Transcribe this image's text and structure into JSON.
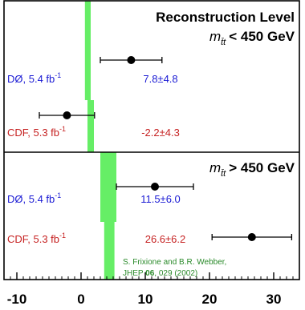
{
  "chart_data": {
    "type": "scatter",
    "subtype": "forest-plot",
    "xlim": [
      -12,
      34
    ],
    "x_ticks": [
      -10,
      0,
      10,
      20,
      30
    ],
    "x_tick_labels": [
      "-10",
      "0",
      "10",
      "20",
      "30"
    ],
    "grid": false,
    "title": "Reconstruction Level",
    "colors": {
      "frame": "#000000",
      "d0": "#1a1ad4",
      "cdf": "#c62222",
      "band": "#66ee66",
      "citation": "#2a8a2a",
      "marker": "#000000"
    },
    "panels": [
      {
        "label_var": "m",
        "label_sub": "t̄t",
        "label_rest": "< 450 GeV",
        "band": [
          {
            "x_range": [
              0.6,
              1.5
            ],
            "note": "upper band segment"
          },
          {
            "x_range": [
              1.0,
              2.0
            ],
            "note": "lower band segment"
          }
        ],
        "entries": [
          {
            "experiment": "DØ, 5.4 fb",
            "lumi_exp": "-1",
            "value": 7.8,
            "error": 4.8,
            "value_label": "7.8±4.8",
            "color_key": "d0"
          },
          {
            "experiment": "CDF, 5.3 fb",
            "lumi_exp": "-1",
            "value": -2.2,
            "error": 4.3,
            "value_label": "-2.2±4.3",
            "color_key": "cdf"
          }
        ]
      },
      {
        "label_var": "m",
        "label_sub": "t̄t",
        "label_rest": "> 450 GeV",
        "band": [
          {
            "x_range": [
              3.0,
              5.5
            ],
            "note": "upper band segment"
          },
          {
            "x_range": [
              3.6,
              5.2
            ],
            "note": "lower band segment"
          }
        ],
        "entries": [
          {
            "experiment": "DØ, 5.4 fb",
            "lumi_exp": "-1",
            "value": 11.5,
            "error": 6.0,
            "value_label": "11.5±6.0",
            "color_key": "d0"
          },
          {
            "experiment": "CDF, 5.3 fb",
            "lumi_exp": "-1",
            "value": 26.6,
            "error": 6.2,
            "value_label": "26.6±6.2",
            "color_key": "cdf"
          }
        ]
      }
    ],
    "annotation": {
      "line1": "S. Frixione and B.R. Webber,",
      "line2_prefix": "JHEP ",
      "line2_bold": "06",
      "line2_suffix": ", 029 (2002)"
    }
  }
}
